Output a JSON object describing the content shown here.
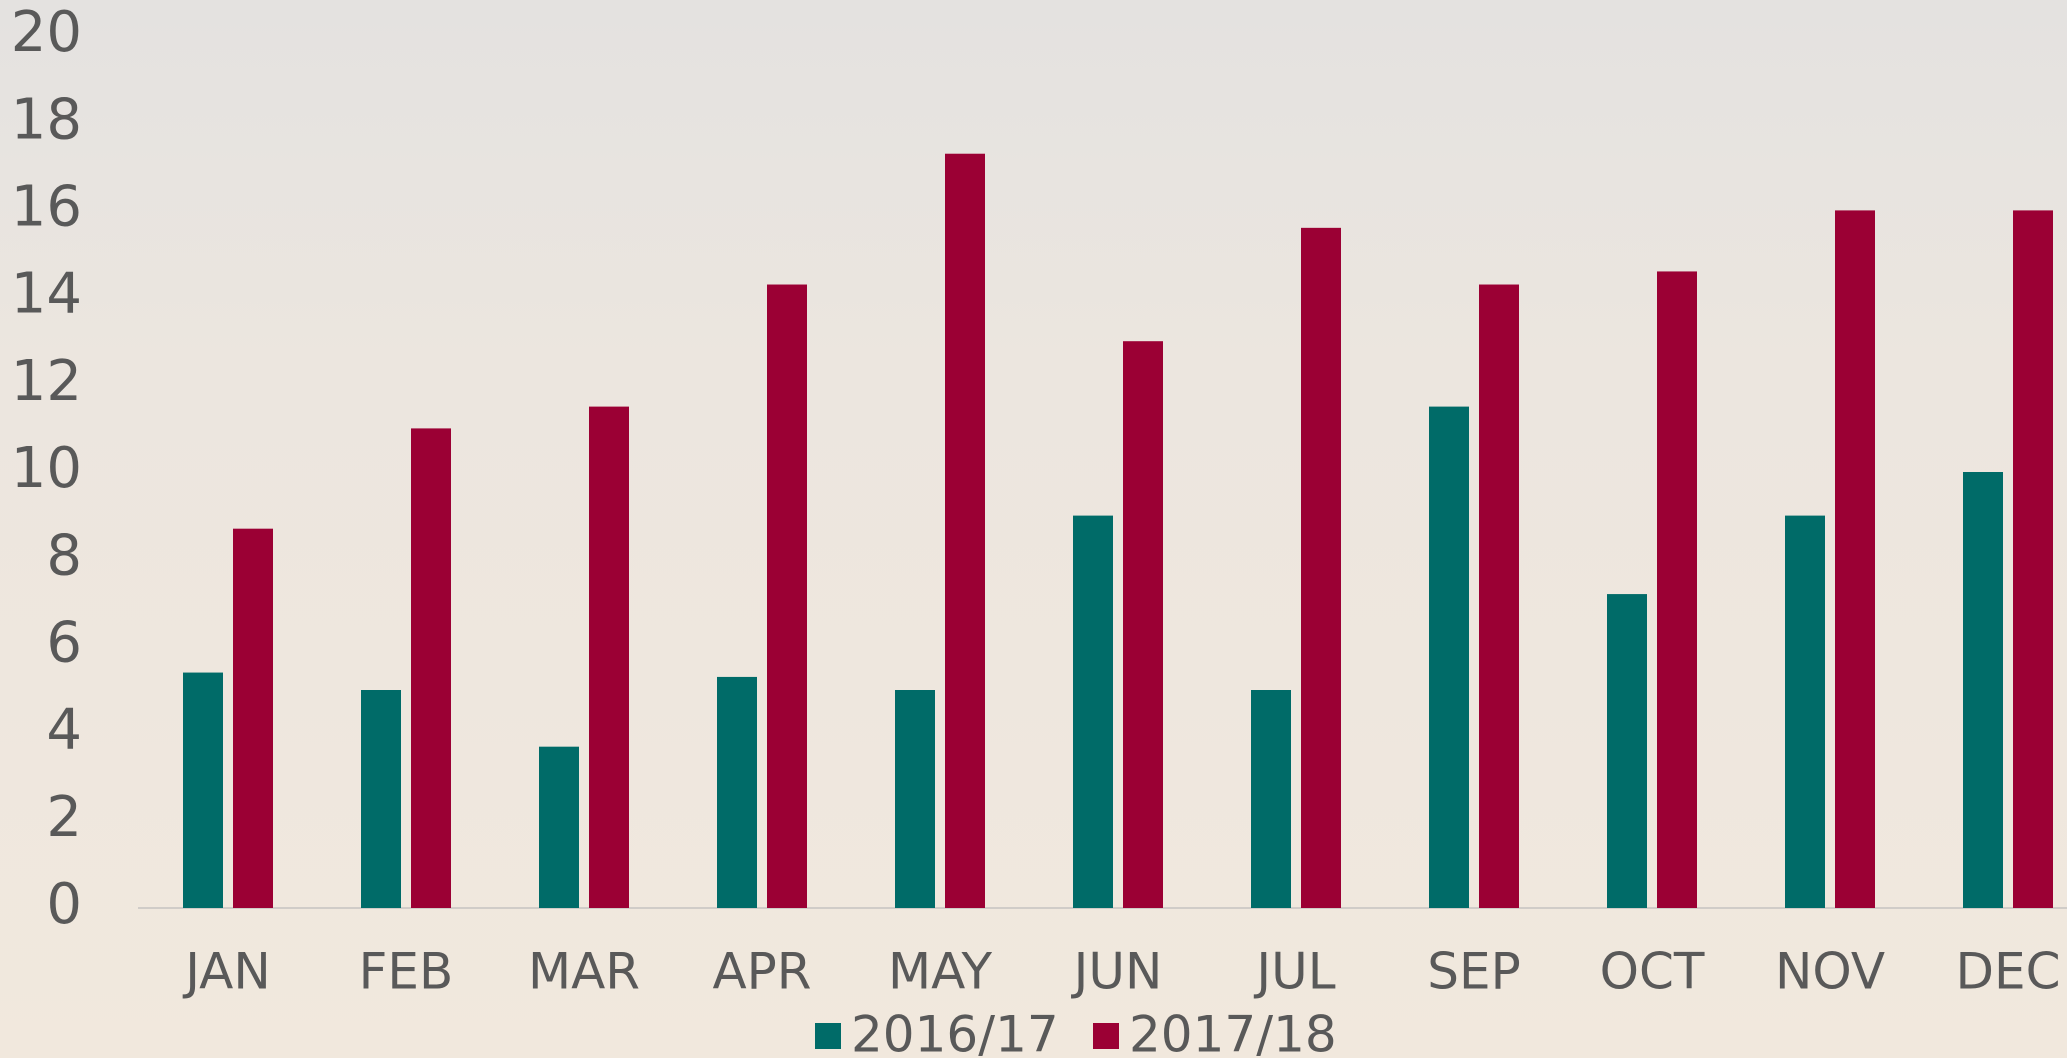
{
  "chart_data": {
    "type": "bar",
    "categories": [
      "JAN",
      "FEB",
      "MAR",
      "APR",
      "MAY",
      "JUN",
      "JUL",
      "SEP",
      "OCT",
      "NOV",
      "DEC"
    ],
    "series": [
      {
        "name": "2016/17",
        "color": "#006b68",
        "values": [
          5.4,
          5.0,
          3.7,
          5.3,
          5.0,
          9.0,
          5.0,
          11.5,
          7.2,
          9.0,
          10.0
        ]
      },
      {
        "name": "2017/18",
        "color": "#9b0034",
        "values": [
          8.7,
          11.0,
          11.5,
          14.3,
          17.3,
          13.0,
          15.6,
          14.3,
          14.6,
          16.0,
          16.0
        ]
      }
    ],
    "ylim": [
      0,
      20
    ],
    "yticks": [
      0,
      2,
      4,
      6,
      8,
      10,
      12,
      14,
      16,
      18,
      20
    ]
  }
}
